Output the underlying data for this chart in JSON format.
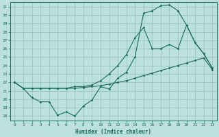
{
  "xlabel": "Humidex (Indice chaleur)",
  "bg_color": "#bce0e0",
  "grid_color": "#94c8c8",
  "line_color": "#1a6b5a",
  "xlim": [
    -0.5,
    23.5
  ],
  "ylim": [
    17.5,
    31.5
  ],
  "xticks": [
    0,
    1,
    2,
    3,
    4,
    5,
    6,
    7,
    8,
    9,
    10,
    11,
    12,
    13,
    14,
    15,
    16,
    17,
    18,
    19,
    20,
    21,
    22,
    23
  ],
  "yticks": [
    18,
    19,
    20,
    21,
    22,
    23,
    24,
    25,
    26,
    27,
    28,
    29,
    30,
    31
  ],
  "curve1_x": [
    0,
    1,
    2,
    3,
    4,
    5,
    6,
    7,
    8,
    9,
    10,
    11,
    12,
    13,
    14,
    15,
    16,
    17,
    18,
    19,
    20,
    21,
    22,
    23
  ],
  "curve1_y": [
    22.0,
    21.3,
    20.2,
    19.7,
    19.7,
    18.1,
    18.5,
    18.0,
    19.2,
    19.9,
    21.5,
    21.2,
    22.5,
    23.2,
    25.0,
    30.2,
    30.5,
    31.1,
    31.2,
    30.5,
    28.8,
    26.7,
    25.4,
    23.7
  ],
  "curve2_x": [
    0,
    1,
    2,
    3,
    4,
    5,
    6,
    7,
    8,
    9,
    10,
    11,
    12,
    13,
    14,
    15,
    16,
    17,
    18,
    19,
    20,
    21,
    22,
    23
  ],
  "curve2_y": [
    22.0,
    21.3,
    21.3,
    21.3,
    21.3,
    21.3,
    21.3,
    21.5,
    21.5,
    21.7,
    22.2,
    23.0,
    24.0,
    25.3,
    27.3,
    28.5,
    26.0,
    26.0,
    26.5,
    26.0,
    28.8,
    26.7,
    25.4,
    23.7
  ],
  "curve3_x": [
    0,
    1,
    2,
    3,
    4,
    5,
    6,
    7,
    8,
    9,
    10,
    11,
    12,
    13,
    14,
    15,
    16,
    17,
    18,
    19,
    20,
    21,
    22,
    23
  ],
  "curve3_y": [
    22.0,
    21.3,
    21.3,
    21.3,
    21.3,
    21.3,
    21.3,
    21.3,
    21.4,
    21.5,
    21.6,
    21.8,
    22.0,
    22.2,
    22.5,
    22.8,
    23.1,
    23.4,
    23.7,
    24.0,
    24.3,
    24.6,
    24.9,
    23.5
  ]
}
